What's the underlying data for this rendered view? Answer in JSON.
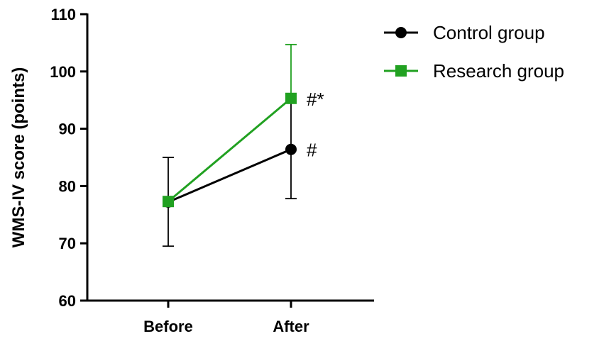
{
  "chart_data": {
    "type": "line",
    "categories": [
      "Before",
      "After"
    ],
    "ylabel": "WMS-IV score (points)",
    "ylim": [
      60,
      110
    ],
    "yticks": [
      60,
      70,
      80,
      90,
      100,
      110
    ],
    "grid": false,
    "legend_position": "top-right",
    "series": [
      {
        "name": "Control group",
        "color": "#000000",
        "marker": "circle",
        "values": [
          77.2,
          86.4
        ],
        "error_low": [
          69.5,
          77.8
        ],
        "error_high": [
          85.0,
          95.0
        ],
        "annotations": [
          "",
          "#"
        ]
      },
      {
        "name": "Research group",
        "color": "#21a121",
        "marker": "square",
        "values": [
          77.3,
          95.3
        ],
        "error_low": [
          77.3,
          95.3
        ],
        "error_high": [
          77.3,
          104.7
        ],
        "annotations": [
          "",
          "#*"
        ]
      }
    ]
  }
}
